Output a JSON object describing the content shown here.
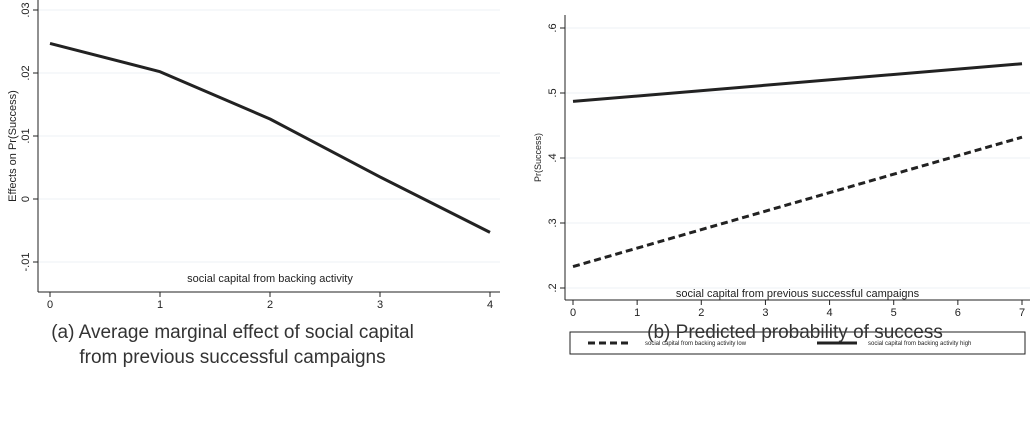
{
  "chart_data": [
    {
      "type": "line",
      "xlabel": "social capital from backing activity",
      "ylabel": "Effects on Pr(Success)",
      "xlim": [
        0,
        4
      ],
      "ylim": [
        -0.01,
        0.03
      ],
      "x_ticks": [
        0,
        1,
        2,
        3,
        4
      ],
      "x_tick_labels": [
        "0",
        "1",
        "2",
        "3",
        "4"
      ],
      "y_ticks": [
        -0.01,
        0,
        0.01,
        0.02,
        0.03
      ],
      "y_tick_labels": [
        "-.01",
        "0",
        ".01",
        ".02",
        ".03"
      ],
      "grid": true,
      "series": [
        {
          "x": [
            0,
            1,
            2,
            3,
            4
          ],
          "values": [
            0.0247,
            0.0202,
            0.0127,
            0.0035,
            -0.0053
          ],
          "color": "#222222",
          "dash": "solid"
        }
      ],
      "caption": "(a)  Average marginal effect of social capital from previous successful campaigns"
    },
    {
      "type": "line",
      "xlabel": "social capital from previous successful campaigns",
      "ylabel": "Pr(Success)",
      "xlim": [
        0,
        7
      ],
      "ylim": [
        0.2,
        0.6
      ],
      "x_ticks": [
        0,
        1,
        2,
        3,
        4,
        5,
        6,
        7
      ],
      "x_tick_labels": [
        "0",
        "1",
        "2",
        "3",
        "4",
        "5",
        "6",
        "7"
      ],
      "y_ticks": [
        0.2,
        0.3,
        0.4,
        0.5,
        0.6
      ],
      "y_tick_labels": [
        ".2",
        ".3",
        ".4",
        ".5",
        ".6"
      ],
      "grid": true,
      "legend_position": "bottom",
      "series": [
        {
          "name": "social capital from backing activity low",
          "x": [
            0,
            7
          ],
          "values": [
            0.233,
            0.432
          ],
          "color": "#222222",
          "dash": "dashed"
        },
        {
          "name": "social capital from backing activity high",
          "x": [
            0,
            7
          ],
          "values": [
            0.487,
            0.545
          ],
          "color": "#222222",
          "dash": "solid"
        }
      ],
      "caption": "(b) Predicted probability of success"
    }
  ]
}
